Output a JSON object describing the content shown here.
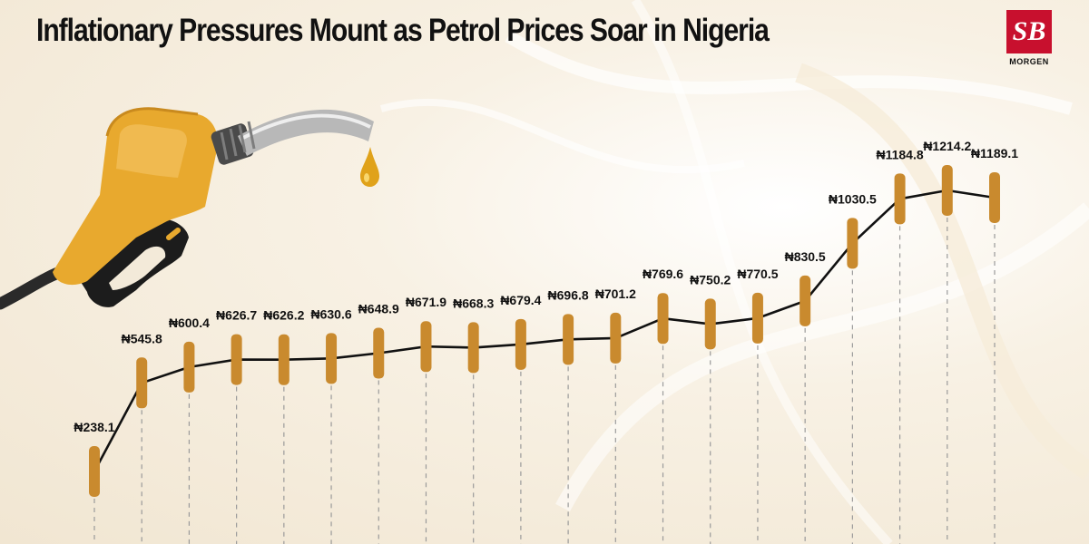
{
  "header": {
    "title": "Inflationary Pressures Mount as Petrol Prices Soar in Nigeria",
    "logo_mark": "SB",
    "logo_text": "MORGEN"
  },
  "colors": {
    "candle": "#c98a2e",
    "line": "#111111",
    "dash": "#9a9a9a",
    "pump_body": "#e8a92e",
    "brand_red": "#c8102e"
  },
  "icons": {
    "pump": "fuel-pump-nozzle-icon",
    "drop": "fuel-drop-icon"
  },
  "chart_data": {
    "type": "line",
    "title": "",
    "xlabel": "",
    "ylabel": "",
    "grid": false,
    "currency_symbol": "₦",
    "labels": [
      "₦238.1",
      "₦545.8",
      "₦600.4",
      "₦626.7",
      "₦626.2",
      "₦630.6",
      "₦648.9",
      "₦671.9",
      "₦668.3",
      "₦679.4",
      "₦696.8",
      "₦701.2",
      "₦769.6",
      "₦750.2",
      "₦770.5",
      "₦830.5",
      "₦1030.5",
      "₦1184.8",
      "₦1214.2",
      "₦1189.1"
    ],
    "values": [
      238.1,
      545.8,
      600.4,
      626.7,
      626.2,
      630.6,
      648.9,
      671.9,
      668.3,
      679.4,
      696.8,
      701.2,
      769.6,
      750.2,
      770.5,
      830.5,
      1030.5,
      1184.8,
      1214.2,
      1189.1
    ]
  }
}
